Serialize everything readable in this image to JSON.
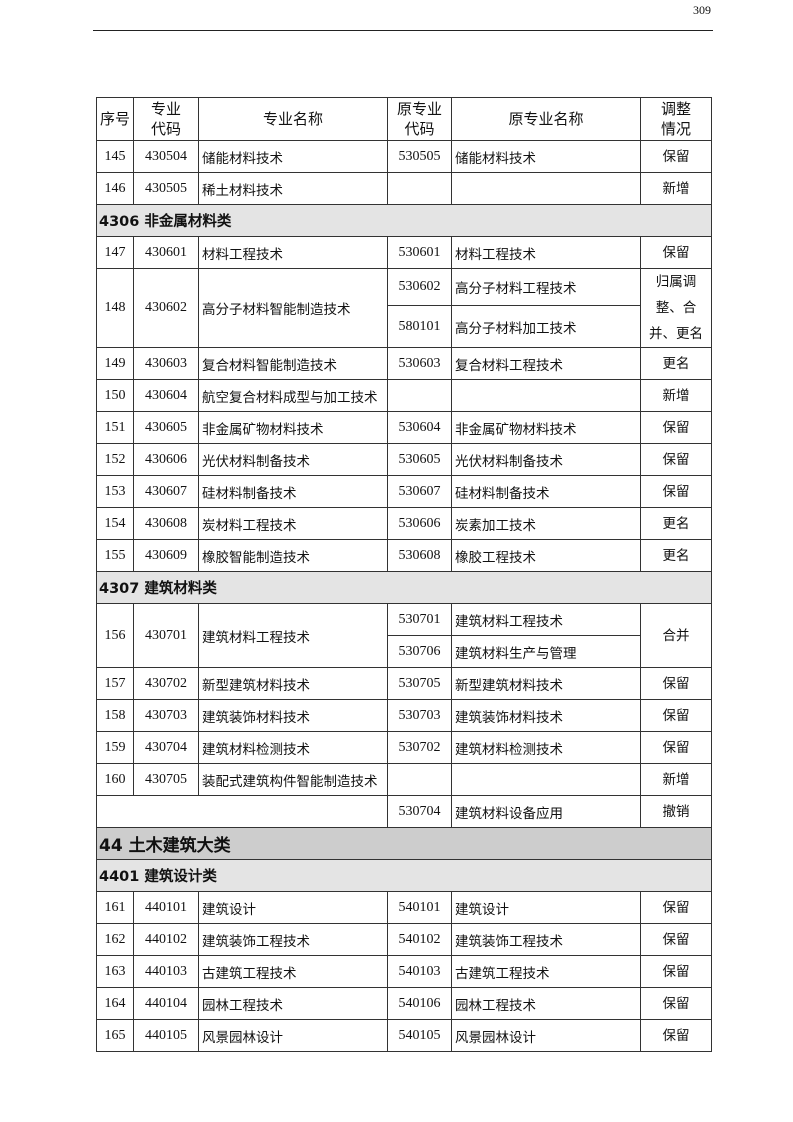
{
  "page_number": "309",
  "table": {
    "headers": [
      "序号",
      "专业\n代码",
      "专业名称",
      "原专业\n代码",
      "原专业名称",
      "调整\n情况"
    ],
    "rows": [
      {
        "type": "item",
        "seq": "145",
        "code": "430504",
        "name": "储能材料技术",
        "subs": [
          {
            "old_code": "530505",
            "old_name": "储能材料技术"
          }
        ],
        "status": "保留"
      },
      {
        "type": "item",
        "seq": "146",
        "code": "430505",
        "name": "稀土材料技术",
        "subs": [
          {
            "old_code": "",
            "old_name": ""
          }
        ],
        "status": "新增"
      },
      {
        "type": "section",
        "level": "minor",
        "text": "4306 非金属材料类"
      },
      {
        "type": "item",
        "seq": "147",
        "code": "430601",
        "name": "材料工程技术",
        "subs": [
          {
            "old_code": "530601",
            "old_name": "材料工程技术"
          }
        ],
        "status": "保留"
      },
      {
        "type": "item",
        "seq": "148",
        "code": "430602",
        "name": "高分子材料智能制造技术",
        "subs": [
          {
            "old_code": "530602",
            "old_name": "高分子材料工程技术"
          },
          {
            "old_code": "580101",
            "old_name": "高分子材料加工技术"
          }
        ],
        "status": "归属调整、合并、更名"
      },
      {
        "type": "item",
        "seq": "149",
        "code": "430603",
        "name": "复合材料智能制造技术",
        "subs": [
          {
            "old_code": "530603",
            "old_name": "复合材料工程技术"
          }
        ],
        "status": "更名"
      },
      {
        "type": "item",
        "seq": "150",
        "code": "430604",
        "name": "航空复合材料成型与加工技术",
        "subs": [
          {
            "old_code": "",
            "old_name": ""
          }
        ],
        "status": "新增"
      },
      {
        "type": "item",
        "seq": "151",
        "code": "430605",
        "name": "非金属矿物材料技术",
        "subs": [
          {
            "old_code": "530604",
            "old_name": "非金属矿物材料技术"
          }
        ],
        "status": "保留"
      },
      {
        "type": "item",
        "seq": "152",
        "code": "430606",
        "name": "光伏材料制备技术",
        "subs": [
          {
            "old_code": "530605",
            "old_name": "光伏材料制备技术"
          }
        ],
        "status": "保留"
      },
      {
        "type": "item",
        "seq": "153",
        "code": "430607",
        "name": "硅材料制备技术",
        "subs": [
          {
            "old_code": "530607",
            "old_name": "硅材料制备技术"
          }
        ],
        "status": "保留"
      },
      {
        "type": "item",
        "seq": "154",
        "code": "430608",
        "name": "炭材料工程技术",
        "subs": [
          {
            "old_code": "530606",
            "old_name": "炭素加工技术"
          }
        ],
        "status": "更名"
      },
      {
        "type": "item",
        "seq": "155",
        "code": "430609",
        "name": "橡胶智能制造技术",
        "subs": [
          {
            "old_code": "530608",
            "old_name": "橡胶工程技术"
          }
        ],
        "status": "更名"
      },
      {
        "type": "section",
        "level": "minor",
        "text": "4307 建筑材料类"
      },
      {
        "type": "item",
        "seq": "156",
        "code": "430701",
        "name": "建筑材料工程技术",
        "subs": [
          {
            "old_code": "530701",
            "old_name": "建筑材料工程技术"
          },
          {
            "old_code": "530706",
            "old_name": "建筑材料生产与管理"
          }
        ],
        "status": "合并"
      },
      {
        "type": "item",
        "seq": "157",
        "code": "430702",
        "name": "新型建筑材料技术",
        "subs": [
          {
            "old_code": "530705",
            "old_name": "新型建筑材料技术"
          }
        ],
        "status": "保留"
      },
      {
        "type": "item",
        "seq": "158",
        "code": "430703",
        "name": "建筑装饰材料技术",
        "subs": [
          {
            "old_code": "530703",
            "old_name": "建筑装饰材料技术"
          }
        ],
        "status": "保留"
      },
      {
        "type": "item",
        "seq": "159",
        "code": "430704",
        "name": "建筑材料检测技术",
        "subs": [
          {
            "old_code": "530702",
            "old_name": "建筑材料检测技术"
          }
        ],
        "status": "保留"
      },
      {
        "type": "item",
        "seq": "160",
        "code": "430705",
        "name": "装配式建筑构件智能制造技术",
        "subs": [
          {
            "old_code": "",
            "old_name": ""
          }
        ],
        "status": "新增"
      },
      {
        "type": "withdrawn",
        "subs": [
          {
            "old_code": "530704",
            "old_name": "建筑材料设备应用"
          }
        ],
        "status": "撤销"
      },
      {
        "type": "section",
        "level": "major",
        "text": "44 土木建筑大类"
      },
      {
        "type": "section",
        "level": "minor",
        "text": "4401 建筑设计类"
      },
      {
        "type": "item",
        "seq": "161",
        "code": "440101",
        "name": "建筑设计",
        "subs": [
          {
            "old_code": "540101",
            "old_name": "建筑设计"
          }
        ],
        "status": "保留"
      },
      {
        "type": "item",
        "seq": "162",
        "code": "440102",
        "name": "建筑装饰工程技术",
        "subs": [
          {
            "old_code": "540102",
            "old_name": "建筑装饰工程技术"
          }
        ],
        "status": "保留"
      },
      {
        "type": "item",
        "seq": "163",
        "code": "440103",
        "name": "古建筑工程技术",
        "subs": [
          {
            "old_code": "540103",
            "old_name": "古建筑工程技术"
          }
        ],
        "status": "保留"
      },
      {
        "type": "item",
        "seq": "164",
        "code": "440104",
        "name": "园林工程技术",
        "subs": [
          {
            "old_code": "540106",
            "old_name": "园林工程技术"
          }
        ],
        "status": "保留"
      },
      {
        "type": "item",
        "seq": "165",
        "code": "440105",
        "name": "风景园林设计",
        "subs": [
          {
            "old_code": "540105",
            "old_name": "风景园林设计"
          }
        ],
        "status": "保留"
      }
    ]
  }
}
